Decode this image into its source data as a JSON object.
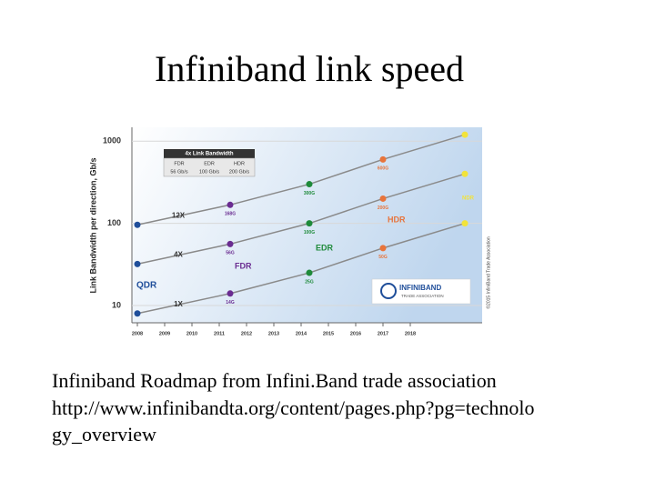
{
  "slide": {
    "title": "Infiniband link speed",
    "caption": [
      "Infiniband Roadmap from Infini.Band trade association",
      "http://www.infinibandta.org/content/pages.php?pg=technolo",
      "gy_overview"
    ]
  },
  "chart_data": {
    "type": "line",
    "ylabel": "Link Bandwidth per direction, Gb/s",
    "log_scale": true,
    "x": [
      2008,
      2011.4,
      2014.3,
      2017,
      2020
    ],
    "xlim": [
      2007.8,
      2020.3
    ],
    "xticks": [
      2008,
      2009,
      2010,
      2011,
      2012,
      2013,
      2014,
      2015,
      2016,
      2017,
      2018
    ],
    "ylim": [
      7,
      1300
    ],
    "yticks": [
      10,
      100,
      1000
    ],
    "series": [
      {
        "name": "1X",
        "color": "#8a8a8a",
        "values": [
          8,
          14,
          25,
          50,
          100
        ],
        "value_labels": [
          null,
          "14G",
          "25G",
          "50G",
          null
        ]
      },
      {
        "name": "4X",
        "color": "#8a8a8a",
        "values": [
          32,
          56,
          100,
          200,
          400
        ],
        "value_labels": [
          null,
          "56G",
          "100G",
          "200G",
          null
        ]
      },
      {
        "name": "12X",
        "color": "#8a8a8a",
        "values": [
          96,
          168,
          300,
          600,
          1200
        ],
        "value_labels": [
          null,
          "168G",
          "300G",
          "600G",
          null
        ]
      }
    ],
    "generations": [
      {
        "name": "QDR",
        "color": "#1f4e9a"
      },
      {
        "name": "FDR",
        "color": "#6a2c91"
      },
      {
        "name": "EDR",
        "color": "#1e8a3a"
      },
      {
        "name": "HDR",
        "color": "#e8743b"
      },
      {
        "name": "NDR",
        "color": "#f2e33a"
      }
    ],
    "inset": {
      "title": "4x Link Bandwidth",
      "header": [
        "FDR",
        "EDR",
        "HDR"
      ],
      "row": [
        "56 Gb/s",
        "100 Gb/s",
        "200 Gb/s"
      ]
    },
    "logo": [
      "INFINIBAND",
      "TRADE ASSOCIATION"
    ],
    "copyright": "©2015 InfiniBand Trade Association"
  }
}
